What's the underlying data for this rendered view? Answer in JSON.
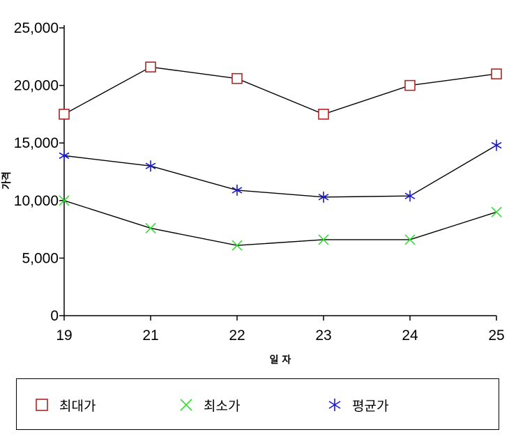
{
  "chart_data": {
    "type": "line",
    "categories": [
      "19",
      "21",
      "22",
      "23",
      "24",
      "25"
    ],
    "series": [
      {
        "name": "최대가",
        "values": [
          17500,
          21600,
          20600,
          17500,
          20000,
          21000
        ],
        "color": "#b22222",
        "marker": "square"
      },
      {
        "name": "최소가",
        "values": [
          10000,
          7600,
          6100,
          6600,
          6600,
          9000
        ],
        "color": "#33dd33",
        "marker": "x"
      },
      {
        "name": "평균가",
        "values": [
          13900,
          13000,
          10900,
          10300,
          10400,
          14800
        ],
        "color": "#1a1acc",
        "marker": "asterisk"
      }
    ],
    "ylim": [
      0,
      25000
    ],
    "yticks": [
      "0",
      "5,000",
      "10,000",
      "15,000",
      "20,000",
      "25,000"
    ],
    "ylabel": "가격",
    "xlabel": "일 자",
    "line_color": "#000000",
    "grid": false,
    "legend_position": "bottom"
  }
}
